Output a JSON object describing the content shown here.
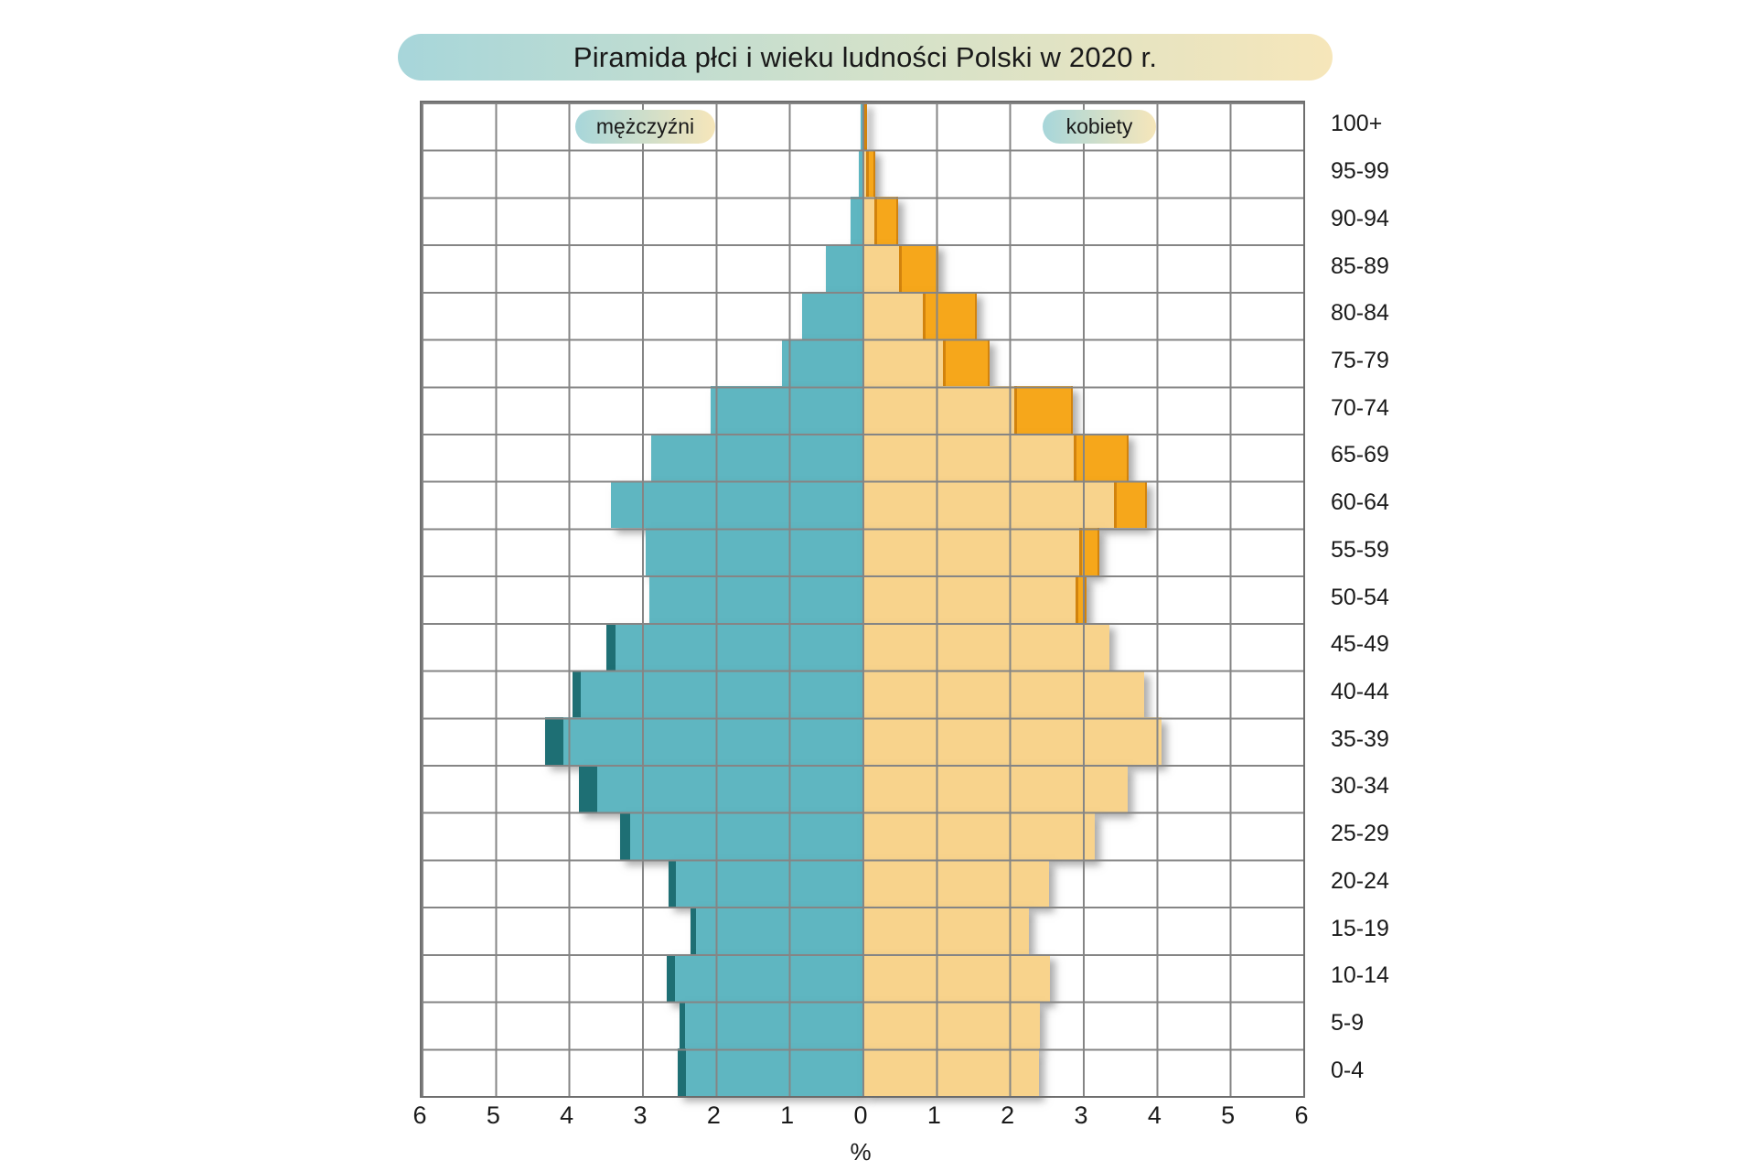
{
  "title": "Piramida płci i wieku ludności Polski w 2020 r.",
  "legend": {
    "male_label": "mężczyźni",
    "female_label": "kobiety"
  },
  "axis": {
    "x_tick_labels": [
      "6",
      "5",
      "4",
      "3",
      "2",
      "1",
      "0",
      "1",
      "2",
      "3",
      "4",
      "5",
      "6"
    ],
    "x_unit": "%",
    "x_max_percent": 6
  },
  "colors": {
    "male_bar": "#5fb6c1",
    "male_surplus": "#1e6f74",
    "female_bar": "#f8d38c",
    "female_surplus": "#f6a71b",
    "female_surplus_edge": "#d2830d",
    "grid_line": "#858585",
    "plot_border": "#6e6e6e",
    "banner_gradient_start": "#a7d6da",
    "banner_gradient_mid": "#d2e1ca",
    "banner_gradient_end": "#f6e6ba"
  },
  "chart_data": {
    "type": "bar",
    "subtype": "population-pyramid",
    "title": "Piramida płci i wieku ludności Polski w 2020 r.",
    "xlabel": "%",
    "ylabel": "",
    "xlim": [
      -6,
      6
    ],
    "grid": true,
    "categories_top_to_bottom": [
      "100+",
      "95-99",
      "90-94",
      "85-89",
      "80-84",
      "75-79",
      "70-74",
      "65-69",
      "60-64",
      "55-59",
      "50-54",
      "45-49",
      "40-44",
      "35-39",
      "30-34",
      "25-29",
      "20-24",
      "15-19",
      "10-14",
      "5-9",
      "0-4"
    ],
    "series": [
      {
        "name": "mężczyźni",
        "side": "left",
        "unit": "% of total population",
        "values": [
          0.02,
          0.05,
          0.16,
          0.5,
          0.82,
          1.1,
          2.07,
          2.88,
          3.42,
          2.95,
          2.9,
          3.49,
          3.95,
          4.32,
          3.86,
          3.3,
          2.64,
          2.34,
          2.67,
          2.49,
          2.52
        ]
      },
      {
        "name": "kobiety",
        "side": "right",
        "unit": "% of total population",
        "values": [
          0.06,
          0.17,
          0.48,
          1.03,
          1.56,
          1.73,
          2.86,
          3.62,
          3.87,
          3.22,
          3.05,
          3.36,
          3.83,
          4.07,
          3.61,
          3.16,
          2.54,
          2.26,
          2.55,
          2.42,
          2.4
        ]
      }
    ],
    "surplus_encoding": "darker tip segment shows excess of one sex over the other in that age group"
  }
}
